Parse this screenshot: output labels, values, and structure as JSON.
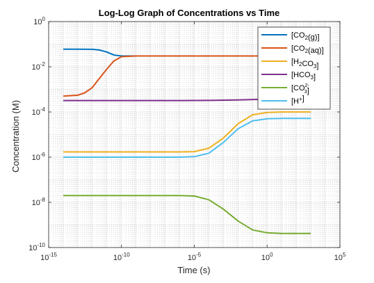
{
  "chart_data": {
    "type": "line",
    "title": "Log-Log Graph of Concentrations vs Time",
    "xlabel": "Time (s)",
    "ylabel": "Concentration (M)",
    "xscale": "log",
    "yscale": "log",
    "xlim": [
      1e-15,
      100000.0
    ],
    "ylim": [
      1e-10,
      1
    ],
    "x_ticks": [
      {
        "value": 1e-15,
        "base": "10",
        "exp": "-15"
      },
      {
        "value": 1e-10,
        "base": "10",
        "exp": "-10"
      },
      {
        "value": 1e-05,
        "base": "10",
        "exp": "-5"
      },
      {
        "value": 1,
        "base": "10",
        "exp": "0"
      },
      {
        "value": 100000.0,
        "base": "10",
        "exp": "5"
      }
    ],
    "y_ticks": [
      {
        "value": 1e-10,
        "base": "10",
        "exp": "-10"
      },
      {
        "value": 1e-08,
        "base": "10",
        "exp": "-8"
      },
      {
        "value": 1e-06,
        "base": "10",
        "exp": "-6"
      },
      {
        "value": 0.0001,
        "base": "10",
        "exp": "-4"
      },
      {
        "value": 0.01,
        "base": "10",
        "exp": "-2"
      },
      {
        "value": 1,
        "base": "10",
        "exp": "0"
      }
    ],
    "grid": "major and minor",
    "legend_position": "top-right",
    "series": [
      {
        "name": "[CO2(g)]",
        "legend": [
          {
            "t": "[CO"
          },
          {
            "t": "2",
            "s": "sub"
          },
          {
            "t": "(g)]"
          }
        ],
        "color": "#0072BD",
        "x": [
          1e-14,
          1e-13,
          1e-12,
          3e-12,
          1e-11,
          3e-11,
          1e-10,
          1e-09,
          1e-06,
          0.001,
          1,
          100.0,
          1000.0
        ],
        "y": [
          0.06,
          0.06,
          0.059,
          0.055,
          0.045,
          0.033,
          0.03,
          0.03,
          0.03,
          0.03,
          0.03,
          0.03,
          0.03
        ]
      },
      {
        "name": "[CO2(aq)]",
        "legend": [
          {
            "t": "[CO"
          },
          {
            "t": "2",
            "s": "sub"
          },
          {
            "t": "(aq)]"
          }
        ],
        "color": "#D95319",
        "x": [
          1e-14,
          1e-13,
          3e-13,
          1e-12,
          3e-12,
          1e-11,
          3e-11,
          1e-10,
          1e-09,
          1e-06,
          0.001,
          1,
          100.0,
          1000.0
        ],
        "y": [
          0.0005,
          0.00055,
          0.0007,
          0.0012,
          0.003,
          0.008,
          0.018,
          0.028,
          0.03,
          0.03,
          0.03,
          0.03,
          0.03,
          0.03
        ]
      },
      {
        "name": "[H2CO3]",
        "legend": [
          {
            "t": "[H"
          },
          {
            "t": "2",
            "s": "sub"
          },
          {
            "t": "CO"
          },
          {
            "t": "3",
            "s": "sub"
          },
          {
            "t": "]"
          }
        ],
        "color": "#EDB120",
        "x": [
          1e-14,
          1e-10,
          1e-06,
          1e-05,
          0.0001,
          0.001,
          0.01,
          0.1,
          1,
          10.0,
          100.0,
          1000.0
        ],
        "y": [
          1.7e-06,
          1.7e-06,
          1.7e-06,
          1.75e-06,
          2.5e-06,
          7e-06,
          3e-05,
          7.5e-05,
          9.5e-05,
          0.0001,
          0.0001,
          0.0001
        ]
      },
      {
        "name": "[HCO3]",
        "legend": [
          {
            "t": "[HCO"
          },
          {
            "t": "3",
            "s": "sub"
          },
          {
            "t": "]"
          }
        ],
        "color": "#7E2F8E",
        "x": [
          1e-14,
          1e-10,
          1e-06,
          0.0001,
          0.01,
          1,
          10.0,
          100.0,
          1000.0
        ],
        "y": [
          0.00032,
          0.00032,
          0.00032,
          0.000325,
          0.00034,
          0.00037,
          0.00039,
          0.0004,
          0.0004
        ]
      },
      {
        "name": "[CO3 2-]",
        "legend": [
          {
            "t": "[CO"
          },
          {
            "t": "3",
            "s": "sub",
            "sup": "2-"
          },
          {
            "t": "]"
          }
        ],
        "color": "#77AC30",
        "x": [
          1e-14,
          1e-10,
          1e-06,
          1e-05,
          0.0001,
          0.001,
          0.01,
          0.1,
          1,
          10.0,
          100.0,
          1000.0
        ],
        "y": [
          2e-08,
          2e-08,
          2e-08,
          1.9e-08,
          1.3e-08,
          5e-09,
          1.5e-09,
          6e-10,
          4.5e-10,
          4.2e-10,
          4.2e-10,
          4.2e-10
        ]
      },
      {
        "name": "[H+]",
        "legend": [
          {
            "t": "[H"
          },
          {
            "t": "+",
            "s": "sup"
          },
          {
            "t": "]"
          }
        ],
        "color": "#4DBEEE",
        "x": [
          1e-14,
          1e-10,
          1e-06,
          1e-05,
          0.0001,
          0.001,
          0.01,
          0.1,
          1,
          10.0,
          100.0,
          1000.0
        ],
        "y": [
          1e-06,
          1e-06,
          1e-06,
          1.05e-06,
          1.5e-06,
          4.5e-06,
          1.8e-05,
          4e-05,
          5e-05,
          5.2e-05,
          5.2e-05,
          5.2e-05
        ]
      }
    ]
  }
}
